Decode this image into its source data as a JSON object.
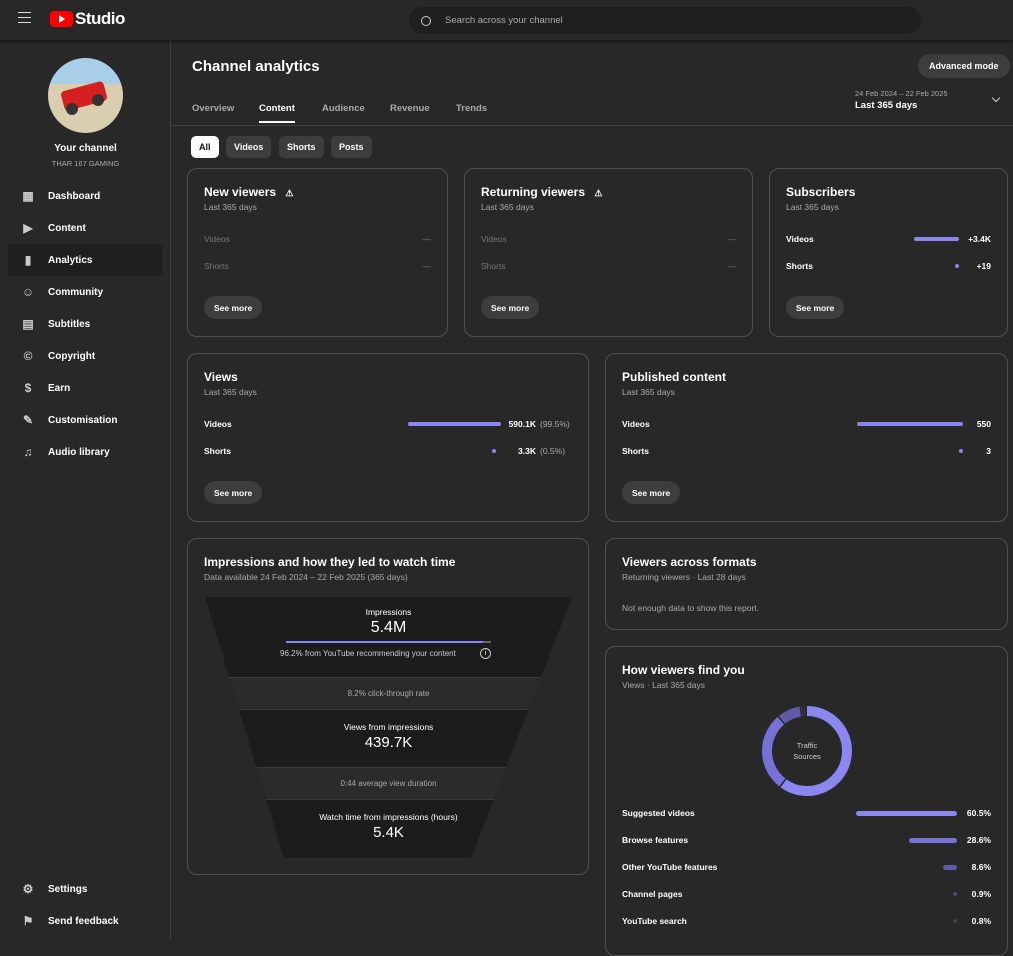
{
  "header": {
    "app": "Studio",
    "search_placeholder": "Search across your channel"
  },
  "channel": {
    "label": "Your channel",
    "name": "THAR 167 GAMING"
  },
  "sidebar": {
    "items": [
      {
        "label": "Dashboard",
        "icon": "dashboard-icon",
        "glyph": "▦"
      },
      {
        "label": "Content",
        "icon": "content-icon",
        "glyph": "▶"
      },
      {
        "label": "Analytics",
        "icon": "analytics-icon",
        "glyph": "▮"
      },
      {
        "label": "Community",
        "icon": "community-icon",
        "glyph": "☺"
      },
      {
        "label": "Subtitles",
        "icon": "subtitles-icon",
        "glyph": "▤"
      },
      {
        "label": "Copyright",
        "icon": "copyright-icon",
        "glyph": "©"
      },
      {
        "label": "Earn",
        "icon": "earn-icon",
        "glyph": "$"
      },
      {
        "label": "Customisation",
        "icon": "customisation-icon",
        "glyph": "✎"
      },
      {
        "label": "Audio library",
        "icon": "audio-library-icon",
        "glyph": "♫"
      }
    ],
    "settings": "Settings",
    "feedback": "Send feedback"
  },
  "page": {
    "title": "Channel analytics",
    "advanced": "Advanced mode",
    "date_range": "24 Feb 2024 – 22 Feb 2025",
    "period": "Last 365 days",
    "tabs": [
      "Overview",
      "Content",
      "Audience",
      "Revenue",
      "Trends"
    ],
    "active_tab": "Content",
    "chips": [
      "All",
      "Videos",
      "Shorts",
      "Posts"
    ]
  },
  "cards": {
    "new_viewers": {
      "title": "New viewers",
      "sub": "Last 365 days",
      "rows": [
        {
          "label": "Videos",
          "value": "—"
        },
        {
          "label": "Shorts",
          "value": "—"
        }
      ],
      "btn": "See more"
    },
    "returning": {
      "title": "Returning viewers",
      "sub": "Last 365 days",
      "rows": [
        {
          "label": "Videos",
          "value": "—"
        },
        {
          "label": "Shorts",
          "value": "—"
        }
      ],
      "btn": "See more"
    },
    "subscribers": {
      "title": "Subscribers",
      "sub": "Last 365 days",
      "rows": [
        {
          "label": "Videos",
          "value": "+3.4K"
        },
        {
          "label": "Shorts",
          "value": "+19"
        }
      ],
      "btn": "See more"
    },
    "views": {
      "title": "Views",
      "sub": "Last 365 days",
      "rows": [
        {
          "label": "Videos",
          "value": "590.1K",
          "pct": "(99.5%)",
          "share": 99.5
        },
        {
          "label": "Shorts",
          "value": "3.3K",
          "pct": "(0.5%)",
          "share": 0.5
        }
      ],
      "btn": "See more"
    },
    "published": {
      "title": "Published content",
      "sub": "Last 365 days",
      "rows": [
        {
          "label": "Videos",
          "value": "550"
        },
        {
          "label": "Shorts",
          "value": "3"
        }
      ],
      "btn": "See more"
    },
    "impressions": {
      "title": "Impressions and how they led to watch time",
      "sub": "Data available 24 Feb 2024 – 22 Feb 2025 (365 days)",
      "imp_label": "Impressions",
      "imp_value": "5.4M",
      "rec_share": 96.2,
      "rec_text": "96.2% from YouTube recommending your content",
      "ctr": "8.2% click-through rate",
      "views_label": "Views from impressions",
      "views_value": "439.7K",
      "avd": "0:44 average view duration",
      "wt_label": "Watch time from impressions (hours)",
      "wt_value": "5.4K"
    },
    "formats": {
      "title": "Viewers across formats",
      "sub": "Returning viewers · Last 28 days",
      "msg": "Not enough data to show this report."
    },
    "find": {
      "title": "How viewers find you",
      "sub": "Views · Last 365 days",
      "donut_label_1": "Traffic",
      "donut_label_2": "Sources",
      "sources": [
        {
          "label": "Suggested videos",
          "pct": "60.5%",
          "value": 60.5,
          "color": "#8b87f0"
        },
        {
          "label": "Browse features",
          "pct": "28.6%",
          "value": 28.6,
          "color": "#7571d6"
        },
        {
          "label": "Other YouTube features",
          "pct": "8.6%",
          "value": 8.6,
          "color": "#5f5ba8"
        },
        {
          "label": "Channel pages",
          "pct": "0.9%",
          "value": 0.9,
          "color": "#4a4780"
        },
        {
          "label": "YouTube search",
          "pct": "0.8%",
          "value": 0.8,
          "color": "#3d3b66"
        }
      ]
    }
  }
}
